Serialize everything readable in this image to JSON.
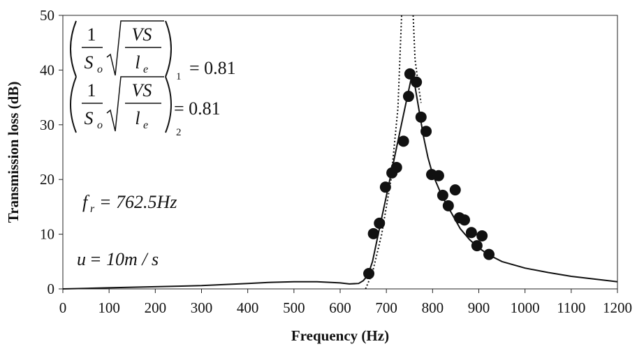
{
  "chart_data": {
    "type": "scatter",
    "xlabel": "Frequency (Hz)",
    "ylabel": "Transmission loss (dB)",
    "xlim": [
      0,
      1200
    ],
    "ylim": [
      0,
      50
    ],
    "xticks": [
      0,
      100,
      200,
      300,
      400,
      500,
      600,
      700,
      800,
      900,
      1000,
      1100,
      1200
    ],
    "yticks": [
      0,
      10,
      20,
      30,
      40,
      50
    ],
    "series": [
      {
        "type": "line",
        "style": "solid",
        "color": "#111111",
        "x": [
          0,
          50,
          100,
          150,
          200,
          250,
          300,
          350,
          400,
          450,
          500,
          550,
          600,
          620,
          640,
          650,
          660,
          670,
          680,
          690,
          700,
          710,
          720,
          730,
          740,
          750,
          755,
          760,
          770,
          780,
          790,
          800,
          810,
          820,
          840,
          860,
          880,
          900,
          920,
          950,
          1000,
          1050,
          1100,
          1150,
          1200
        ],
        "values": [
          0,
          0.1,
          0.2,
          0.3,
          0.4,
          0.5,
          0.6,
          0.8,
          1.0,
          1.2,
          1.3,
          1.3,
          1.1,
          0.9,
          1.0,
          1.5,
          2.5,
          5,
          9,
          13,
          17,
          21,
          25,
          29,
          33,
          37,
          39,
          38,
          33,
          28,
          24,
          21,
          19,
          17,
          14,
          11,
          9,
          7.5,
          6.3,
          5,
          3.8,
          3,
          2.3,
          1.8,
          1.3
        ]
      },
      {
        "type": "line",
        "style": "dotted",
        "color": "#111111",
        "x": [
          655,
          670,
          690,
          710,
          725,
          733,
          740,
          758,
          762,
          768,
          775
        ],
        "values": [
          0,
          3,
          10,
          20,
          33,
          50,
          null,
          50,
          42,
          38,
          34
        ]
      },
      {
        "type": "scatter",
        "color": "#111111",
        "x": [
          662,
          672,
          685,
          698,
          712,
          722,
          737,
          748,
          751,
          765,
          775,
          786,
          798,
          813,
          822,
          834,
          849,
          858,
          869,
          884,
          896,
          907,
          922
        ],
        "values": [
          2.8,
          10.1,
          12.0,
          18.6,
          21.2,
          22.2,
          27.0,
          35.2,
          39.3,
          37.8,
          31.4,
          28.8,
          20.9,
          20.7,
          17.1,
          15.2,
          18.1,
          13.0,
          12.6,
          10.3,
          7.9,
          9.7,
          6.3
        ]
      }
    ],
    "annotations": [
      {
        "num": "1",
        "den": "S",
        "den_sub": "o",
        "root_num": "VS",
        "root_den": "l",
        "root_den_sub": "e",
        "outer_sub": "1",
        "equals": "= 0.81"
      },
      {
        "num": "1",
        "den": "S",
        "den_sub": "o",
        "root_num": "VS",
        "root_den": "l",
        "root_den_sub": "e",
        "outer_sub": "2",
        "equals": "= 0.81"
      }
    ],
    "notes": [
      {
        "symbol": "f",
        "sub": "r",
        "text": "= 762.5Hz"
      },
      {
        "symbol": "u",
        "text": "= 10m / s"
      }
    ]
  }
}
